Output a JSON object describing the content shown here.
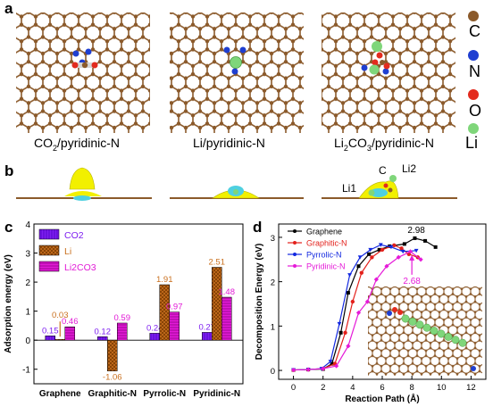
{
  "panel_labels": {
    "a": "a",
    "b": "b",
    "c": "c",
    "d": "d"
  },
  "panel_a": {
    "captions": [
      "CO2/pyridinic-N",
      "Li/pyridinic-N",
      "Li2CO3/pyridinic-N"
    ],
    "element_legend": [
      {
        "symbol": "C",
        "color": "#8b5a2b"
      },
      {
        "symbol": "N",
        "color": "#1f3fd1"
      },
      {
        "symbol": "O",
        "color": "#e32b1e"
      },
      {
        "symbol": "Li",
        "color": "#7fd67a"
      }
    ]
  },
  "panel_b": {
    "labels": {
      "c": "C",
      "li1": "Li1",
      "li2": "Li2"
    }
  },
  "colors": {
    "co2": "#7d1df0",
    "li": "#c9701f",
    "li2co3": "#e21ad6",
    "graphene": "#000000",
    "graphitic": "#e3201b",
    "pyrrolic": "#1228e0",
    "pyridinic": "#e51ad8",
    "carbon": "#8b5a2b"
  },
  "chart_data": [
    {
      "type": "bar",
      "title": "",
      "xlabel": "",
      "ylabel": "Adsorption energy (eV)",
      "ylim": [
        -1.5,
        4
      ],
      "yticks": [
        "-1",
        "0",
        "1",
        "2",
        "3",
        "4"
      ],
      "categories": [
        "Graphene",
        "Graphitic-N",
        "Pyrrolic-N",
        "Pyridinic-N"
      ],
      "series": [
        {
          "name": "CO2",
          "values": [
            0.15,
            0.12,
            0.24,
            0.27
          ],
          "labels": [
            "0.15",
            "0.12",
            "0.24",
            "0.27"
          ]
        },
        {
          "name": "Li",
          "values": [
            0.03,
            -1.06,
            1.91,
            2.51
          ],
          "labels": [
            "0.03",
            "-1.06",
            "1.91",
            "2.51"
          ]
        },
        {
          "name": "Li2CO3",
          "values": [
            0.46,
            0.59,
            0.97,
            1.48
          ],
          "labels": [
            "0.46",
            "0.59",
            "0.97",
            "1.48"
          ]
        }
      ],
      "legend_placement": "top-left"
    },
    {
      "type": "line",
      "title": "",
      "xlabel": "Reaction Path (Å)",
      "ylabel": "Decomposition Energy (eV)",
      "xlim": [
        -1,
        13
      ],
      "ylim": [
        -0.2,
        3.3
      ],
      "xticks": [
        "0",
        "2",
        "4",
        "6",
        "8",
        "10",
        "12"
      ],
      "yticks": [
        "0",
        "1",
        "2",
        "3"
      ],
      "series": [
        {
          "name": "Graphene",
          "x": [
            0,
            1,
            2,
            2.6,
            3.2,
            3.7,
            4.4,
            5.1,
            5.8,
            6.5,
            7.5,
            8.2,
            8.9,
            9.6
          ],
          "y": [
            0.01,
            0.02,
            0.03,
            0.15,
            0.85,
            1.75,
            2.35,
            2.62,
            2.72,
            2.8,
            2.85,
            2.98,
            2.92,
            2.78
          ]
        },
        {
          "name": "Graphitic-N",
          "x": [
            0,
            1,
            2,
            2.8,
            3.5,
            4.0,
            4.6,
            5.3,
            6.0,
            6.8,
            7.3,
            7.8,
            8.4
          ],
          "y": [
            0.01,
            0.02,
            0.04,
            0.15,
            0.85,
            1.55,
            2.2,
            2.55,
            2.72,
            2.82,
            2.75,
            2.62,
            2.55
          ]
        },
        {
          "name": "Pyrrolic-N",
          "x": [
            0,
            1,
            1.9,
            2.5,
            3.1,
            3.8,
            4.5,
            5.2,
            5.9,
            6.6,
            7.4,
            8.3
          ],
          "y": [
            0.01,
            0.02,
            0.04,
            0.2,
            1.05,
            2.15,
            2.55,
            2.72,
            2.83,
            2.78,
            2.68,
            2.7
          ]
        },
        {
          "name": "Pyridinic-N",
          "x": [
            0,
            1,
            2,
            2.9,
            3.7,
            4.4,
            5.0,
            5.6,
            6.3,
            7.1,
            7.9,
            8.6
          ],
          "y": [
            0.01,
            0.02,
            0.04,
            0.1,
            0.55,
            1.3,
            1.55,
            2.05,
            2.35,
            2.55,
            2.68,
            2.5
          ]
        }
      ],
      "annotations": [
        "2.98",
        "2.68"
      ],
      "legend_placement": "top-left"
    }
  ]
}
